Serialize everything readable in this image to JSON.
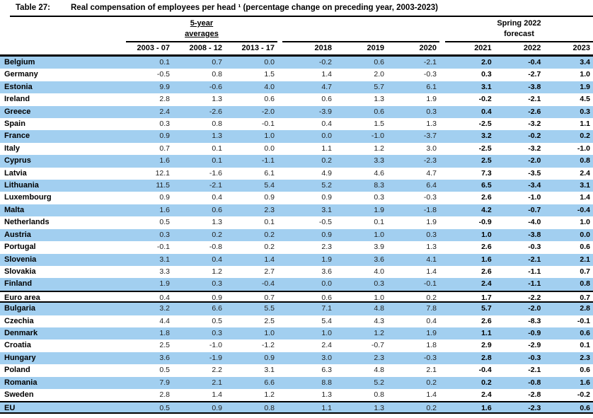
{
  "title": {
    "label": "Table 27:",
    "text": "Real compensation of employees per head ¹ (percentage change on preceding year, 2003-2023)"
  },
  "header": {
    "group_averages_line1": "5-year",
    "group_averages_line2": "averages",
    "group_forecast_line1": "Spring 2022",
    "group_forecast_line2": "forecast"
  },
  "colors": {
    "stripe_blue": "#a2cff0",
    "rule_black": "#000000"
  },
  "chart_data": {
    "type": "table",
    "columns": [
      "2003 - 07",
      "2008 - 12",
      "2013 - 17",
      "2018",
      "2019",
      "2020",
      "2021",
      "2022",
      "2023"
    ],
    "column_groups": [
      "5-year averages",
      "",
      "Spring 2022 forecast"
    ],
    "rows": [
      {
        "name": "Belgium",
        "values": [
          "0.1",
          "0.7",
          "0.0",
          "-0.2",
          "0.6",
          "-2.1",
          "2.0",
          "-0.4",
          "3.4"
        ]
      },
      {
        "name": "Germany",
        "values": [
          "-0.5",
          "0.8",
          "1.5",
          "1.4",
          "2.0",
          "-0.3",
          "0.3",
          "-2.7",
          "1.0"
        ]
      },
      {
        "name": "Estonia",
        "values": [
          "9.9",
          "-0.6",
          "4.0",
          "4.7",
          "5.7",
          "6.1",
          "3.1",
          "-3.8",
          "1.9"
        ]
      },
      {
        "name": "Ireland",
        "values": [
          "2.8",
          "1.3",
          "0.6",
          "0.6",
          "1.3",
          "1.9",
          "-0.2",
          "-2.1",
          "4.5"
        ]
      },
      {
        "name": "Greece",
        "values": [
          "2.4",
          "-2.6",
          "-2.0",
          "-3.9",
          "0.6",
          "0.3",
          "0.4",
          "-2.6",
          "0.3"
        ]
      },
      {
        "name": "Spain",
        "values": [
          "0.3",
          "0.8",
          "-0.1",
          "0.4",
          "1.5",
          "1.3",
          "-2.5",
          "-3.2",
          "1.1"
        ]
      },
      {
        "name": "France",
        "values": [
          "0.9",
          "1.3",
          "1.0",
          "0.0",
          "-1.0",
          "-3.7",
          "3.2",
          "-0.2",
          "0.2"
        ]
      },
      {
        "name": "Italy",
        "values": [
          "0.7",
          "0.1",
          "0.0",
          "1.1",
          "1.2",
          "3.0",
          "-2.5",
          "-3.2",
          "-1.0"
        ]
      },
      {
        "name": "Cyprus",
        "values": [
          "1.6",
          "0.1",
          "-1.1",
          "0.2",
          "3.3",
          "-2.3",
          "2.5",
          "-2.0",
          "0.8"
        ]
      },
      {
        "name": "Latvia",
        "values": [
          "12.1",
          "-1.6",
          "6.1",
          "4.9",
          "4.6",
          "4.7",
          "7.3",
          "-3.5",
          "2.4"
        ]
      },
      {
        "name": "Lithuania",
        "values": [
          "11.5",
          "-2.1",
          "5.4",
          "5.2",
          "8.3",
          "6.4",
          "6.5",
          "-3.4",
          "3.1"
        ]
      },
      {
        "name": "Luxembourg",
        "values": [
          "0.9",
          "0.4",
          "0.9",
          "0.9",
          "0.3",
          "-0.3",
          "2.6",
          "-1.0",
          "1.4"
        ]
      },
      {
        "name": "Malta",
        "values": [
          "1.6",
          "0.6",
          "2.3",
          "3.1",
          "1.9",
          "-1.8",
          "4.2",
          "-0.7",
          "-0.4"
        ]
      },
      {
        "name": "Netherlands",
        "values": [
          "0.5",
          "1.3",
          "0.1",
          "-0.5",
          "0.1",
          "1.9",
          "-0.9",
          "-4.0",
          "1.0"
        ]
      },
      {
        "name": "Austria",
        "values": [
          "0.3",
          "0.2",
          "0.2",
          "0.9",
          "1.0",
          "0.3",
          "1.0",
          "-3.8",
          "0.0"
        ]
      },
      {
        "name": "Portugal",
        "values": [
          "-0.1",
          "-0.8",
          "0.2",
          "2.3",
          "3.9",
          "1.3",
          "2.6",
          "-0.3",
          "0.6"
        ]
      },
      {
        "name": "Slovenia",
        "values": [
          "3.1",
          "0.4",
          "1.4",
          "1.9",
          "3.6",
          "4.1",
          "1.6",
          "-2.1",
          "2.1"
        ]
      },
      {
        "name": "Slovakia",
        "values": [
          "3.3",
          "1.2",
          "2.7",
          "3.6",
          "4.0",
          "1.4",
          "2.6",
          "-1.1",
          "0.7"
        ]
      },
      {
        "name": "Finland",
        "values": [
          "1.9",
          "0.3",
          "-0.4",
          "0.0",
          "0.3",
          "-0.1",
          "2.4",
          "-1.1",
          "0.8"
        ]
      },
      {
        "name": "Euro area",
        "aggregate": true,
        "values": [
          "0.4",
          "0.9",
          "0.7",
          "0.6",
          "1.0",
          "0.2",
          "1.7",
          "-2.2",
          "0.7"
        ]
      },
      {
        "name": "Bulgaria",
        "values": [
          "3.2",
          "6.6",
          "5.5",
          "7.1",
          "4.8",
          "7.8",
          "5.7",
          "-2.0",
          "2.8"
        ]
      },
      {
        "name": "Czechia",
        "values": [
          "4.4",
          "0.5",
          "2.5",
          "5.4",
          "4.3",
          "0.4",
          "2.6",
          "-8.3",
          "-0.1"
        ]
      },
      {
        "name": "Denmark",
        "values": [
          "1.8",
          "0.3",
          "1.0",
          "1.0",
          "1.2",
          "1.9",
          "1.1",
          "-0.9",
          "0.6"
        ]
      },
      {
        "name": "Croatia",
        "values": [
          "2.5",
          "-1.0",
          "-1.2",
          "2.4",
          "-0.7",
          "1.8",
          "2.9",
          "-2.9",
          "0.1"
        ]
      },
      {
        "name": "Hungary",
        "values": [
          "3.6",
          "-1.9",
          "0.9",
          "3.0",
          "2.3",
          "-0.3",
          "2.8",
          "-0.3",
          "2.3"
        ]
      },
      {
        "name": "Poland",
        "values": [
          "0.5",
          "2.2",
          "3.1",
          "6.3",
          "4.8",
          "2.1",
          "-0.4",
          "-2.1",
          "0.6"
        ]
      },
      {
        "name": "Romania",
        "values": [
          "7.9",
          "2.1",
          "6.6",
          "8.8",
          "5.2",
          "0.2",
          "0.2",
          "-0.8",
          "1.6"
        ]
      },
      {
        "name": "Sweden",
        "values": [
          "2.8",
          "1.4",
          "1.2",
          "1.3",
          "0.8",
          "1.4",
          "2.4",
          "-2.8",
          "-0.2"
        ]
      },
      {
        "name": "EU",
        "aggregate": true,
        "values": [
          "0.5",
          "0.9",
          "0.8",
          "1.1",
          "1.3",
          "0.2",
          "1.6",
          "-2.3",
          "0.6"
        ]
      }
    ]
  }
}
